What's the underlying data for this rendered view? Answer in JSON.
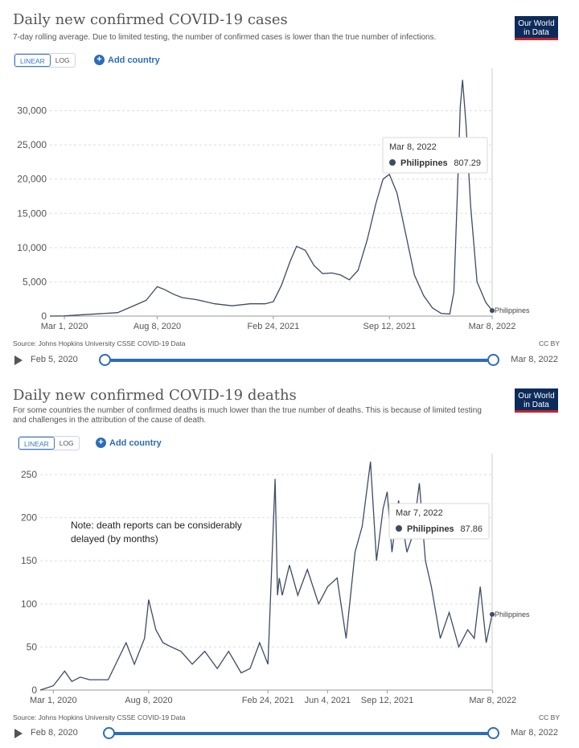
{
  "charts": [
    {
      "title": "Daily new confirmed COVID-19 cases",
      "subtitle": "7-day rolling average. Due to limited testing, the number of confirmed cases is lower than the true number of infections.",
      "logo_line1": "Our World",
      "logo_line2": "in Data",
      "linear_label": "LINEAR",
      "log_label": "LOG",
      "add_country_label": "Add country",
      "source": "Source: Johns Hopkins University CSSE COVID-19 Data",
      "license": "CC BY",
      "timeline_start": "Feb 5, 2020",
      "timeline_end": "Mar 8, 2022",
      "tooltip_date": "Mar 8, 2022",
      "tooltip_country": "Philippines",
      "tooltip_value": "807.29",
      "end_label": "Philippines",
      "line_color": "#3d4b63"
    },
    {
      "title": "Daily new confirmed COVID-19 deaths",
      "subtitle": "For some countries the number of confirmed deaths is much lower than the true number of deaths. This is because of limited testing and challenges in the attribution of the cause of death.",
      "logo_line1": "Our World",
      "logo_line2": "in Data",
      "linear_label": "LINEAR",
      "log_label": "LOG",
      "add_country_label": "Add country",
      "source": "Source: Johns Hopkins University CSSE COVID-19 Data",
      "license": "CC BY",
      "timeline_start": "Feb 8, 2020",
      "timeline_end": "Mar 8, 2022",
      "tooltip_date": "Mar 7, 2022",
      "tooltip_country": "Philippines",
      "tooltip_value": "87.86",
      "end_label": "Philippines",
      "note": "Note: death reports can be considerably delayed (by months)",
      "line_color": "#3d4b63"
    }
  ],
  "chart_data": [
    {
      "type": "line",
      "title": "Daily new confirmed COVID-19 cases",
      "x_tick_labels": [
        "Mar 1, 2020",
        "Aug 8, 2020",
        "Feb 24, 2021",
        "Sep 12, 2021",
        "Mar 8, 2022"
      ],
      "y_tick_labels": [
        "0",
        "5,000",
        "10,000",
        "15,000",
        "20,000",
        "25,000",
        "30,000"
      ],
      "ylim": [
        0,
        35000
      ],
      "grid": true,
      "series": [
        {
          "name": "Philippines",
          "x": [
            "2020-02-05",
            "2020-03-01",
            "2020-04-01",
            "2020-06-01",
            "2020-07-01",
            "2020-07-20",
            "2020-08-08",
            "2020-08-20",
            "2020-09-05",
            "2020-09-20",
            "2020-10-15",
            "2020-11-15",
            "2020-12-15",
            "2021-01-15",
            "2021-02-10",
            "2021-02-24",
            "2021-03-10",
            "2021-03-25",
            "2021-04-05",
            "2021-04-20",
            "2021-05-05",
            "2021-05-20",
            "2021-06-05",
            "2021-06-20",
            "2021-07-05",
            "2021-07-20",
            "2021-08-05",
            "2021-08-20",
            "2021-09-01",
            "2021-09-12",
            "2021-09-25",
            "2021-10-10",
            "2021-10-25",
            "2021-11-10",
            "2021-11-25",
            "2021-12-10",
            "2021-12-25",
            "2022-01-01",
            "2022-01-08",
            "2022-01-12",
            "2022-01-16",
            "2022-01-22",
            "2022-01-30",
            "2022-02-10",
            "2022-02-25",
            "2022-03-08"
          ],
          "y": [
            0,
            20,
            200,
            500,
            1600,
            2300,
            4300,
            3900,
            3200,
            2700,
            2400,
            1800,
            1500,
            1800,
            1800,
            2100,
            4500,
            8000,
            10200,
            9600,
            7400,
            6200,
            6300,
            6000,
            5300,
            6700,
            11200,
            16500,
            20000,
            20700,
            18000,
            12000,
            6000,
            3000,
            1200,
            400,
            300,
            3500,
            20000,
            30500,
            34500,
            28000,
            16000,
            5000,
            2000,
            807.29
          ]
        }
      ]
    },
    {
      "type": "line",
      "title": "Daily new confirmed COVID-19 deaths",
      "x_tick_labels": [
        "Mar 1, 2020",
        "Aug 8, 2020",
        "Feb 24, 2021",
        "Jun 4, 2021",
        "Sep 12, 2021",
        "Mar 8, 2022"
      ],
      "y_tick_labels": [
        "0",
        "50",
        "100",
        "150",
        "200",
        "250"
      ],
      "ylim": [
        0,
        265
      ],
      "grid": true,
      "series": [
        {
          "name": "Philippines",
          "x": [
            "2020-02-08",
            "2020-03-01",
            "2020-03-20",
            "2020-04-01",
            "2020-04-15",
            "2020-05-01",
            "2020-06-01",
            "2020-07-01",
            "2020-07-15",
            "2020-08-01",
            "2020-08-08",
            "2020-08-20",
            "2020-09-01",
            "2020-09-15",
            "2020-10-01",
            "2020-10-20",
            "2020-11-10",
            "2020-12-01",
            "2020-12-20",
            "2021-01-10",
            "2021-01-25",
            "2021-02-10",
            "2021-02-24",
            "2021-03-08",
            "2021-03-12",
            "2021-03-15",
            "2021-03-20",
            "2021-04-01",
            "2021-04-15",
            "2021-05-01",
            "2021-05-20",
            "2021-06-04",
            "2021-06-20",
            "2021-07-05",
            "2021-07-20",
            "2021-08-01",
            "2021-08-15",
            "2021-08-25",
            "2021-09-05",
            "2021-09-12",
            "2021-09-20",
            "2021-10-01",
            "2021-10-15",
            "2021-10-25",
            "2021-11-05",
            "2021-11-15",
            "2021-11-25",
            "2021-12-10",
            "2021-12-25",
            "2022-01-10",
            "2022-01-25",
            "2022-02-05",
            "2022-02-15",
            "2022-02-25",
            "2022-03-07"
          ],
          "y": [
            0,
            5,
            22,
            10,
            15,
            12,
            12,
            55,
            30,
            60,
            105,
            70,
            55,
            50,
            45,
            30,
            45,
            25,
            45,
            20,
            25,
            55,
            30,
            245,
            110,
            130,
            110,
            145,
            110,
            140,
            100,
            120,
            130,
            60,
            160,
            190,
            265,
            150,
            210,
            230,
            160,
            220,
            160,
            180,
            240,
            150,
            120,
            60,
            90,
            50,
            70,
            60,
            120,
            55,
            87.86
          ]
        }
      ]
    }
  ]
}
